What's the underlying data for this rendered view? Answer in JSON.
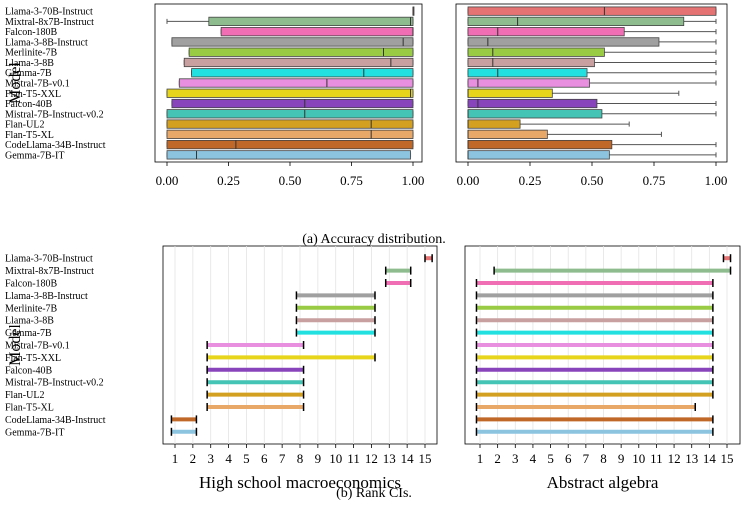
{
  "models": [
    "Llama-3-70B-Instruct",
    "Mixtral-8x7B-Instruct",
    "Falcon-180B",
    "Llama-3-8B-Instruct",
    "Merlinite-7B",
    "Llama-3-8B",
    "Gemma-7B",
    "Mistral-7B-v0.1",
    "Flan-T5-XXL",
    "Falcon-40B",
    "Mistral-7B-Instruct-v0.2",
    "Flan-UL2",
    "Flan-T5-XL",
    "CodeLlama-34B-Instruct",
    "Gemma-7B-IT"
  ],
  "colors": [
    "#e57373",
    "#8fbc8f",
    "#f06fb4",
    "#a0a0a0",
    "#99cc44",
    "#c9a0a0",
    "#22e0e0",
    "#e88fe0",
    "#e6d51a",
    "#8844bb",
    "#44c4b4",
    "#d4a020",
    "#e8a868",
    "#c06828",
    "#8cc4e0"
  ],
  "ylabel": "Model",
  "captions": {
    "a": "(a) Accuracy distribution.",
    "b": "(b) Rank CIs."
  },
  "chart_data": [
    {
      "type": "box",
      "panel": "accuracy-left",
      "ylabel": "Model",
      "xlim": [
        0,
        1
      ],
      "xticks": [
        "0.00",
        "0.25",
        "0.50",
        "0.75",
        "1.00"
      ],
      "boxes": [
        {
          "wlo": 1.0,
          "q1": 1.0,
          "med": 1.0,
          "q3": 1.0,
          "whi": 1.0
        },
        {
          "wlo": 0.0,
          "q1": 0.17,
          "med": 0.99,
          "q3": 1.0,
          "whi": 1.0
        },
        {
          "wlo": 0.22,
          "q1": 0.22,
          "med": 1.0,
          "q3": 1.0,
          "whi": 1.0
        },
        {
          "wlo": 0.02,
          "q1": 0.02,
          "med": 0.96,
          "q3": 1.0,
          "whi": 1.0
        },
        {
          "wlo": 0.09,
          "q1": 0.09,
          "med": 0.88,
          "q3": 1.0,
          "whi": 1.0
        },
        {
          "wlo": 0.07,
          "q1": 0.07,
          "med": 0.91,
          "q3": 1.0,
          "whi": 1.0
        },
        {
          "wlo": 0.1,
          "q1": 0.1,
          "med": 0.8,
          "q3": 1.0,
          "whi": 1.0
        },
        {
          "wlo": 0.05,
          "q1": 0.05,
          "med": 0.65,
          "q3": 1.0,
          "whi": 1.0
        },
        {
          "wlo": 0.0,
          "q1": 0.0,
          "med": 0.99,
          "q3": 1.0,
          "whi": 1.0
        },
        {
          "wlo": 0.02,
          "q1": 0.02,
          "med": 0.56,
          "q3": 1.0,
          "whi": 1.0
        },
        {
          "wlo": 0.0,
          "q1": 0.0,
          "med": 0.56,
          "q3": 1.0,
          "whi": 1.0
        },
        {
          "wlo": 0.0,
          "q1": 0.0,
          "med": 0.83,
          "q3": 1.0,
          "whi": 1.0
        },
        {
          "wlo": 0.0,
          "q1": 0.0,
          "med": 0.83,
          "q3": 1.0,
          "whi": 1.0
        },
        {
          "wlo": 0.0,
          "q1": 0.0,
          "med": 0.28,
          "q3": 1.0,
          "whi": 1.0
        },
        {
          "wlo": 0.0,
          "q1": 0.0,
          "med": 0.12,
          "q3": 0.99,
          "whi": 0.99
        }
      ]
    },
    {
      "type": "box",
      "panel": "accuracy-right",
      "xlim": [
        0,
        1
      ],
      "xticks": [
        "0.00",
        "0.25",
        "0.50",
        "0.75",
        "1.00"
      ],
      "boxes": [
        {
          "wlo": 0.0,
          "q1": 0.0,
          "med": 0.55,
          "q3": 1.0,
          "whi": 1.0
        },
        {
          "wlo": 0.0,
          "q1": 0.0,
          "med": 0.2,
          "q3": 0.87,
          "whi": 1.0
        },
        {
          "wlo": 0.0,
          "q1": 0.0,
          "med": 0.12,
          "q3": 0.63,
          "whi": 1.0
        },
        {
          "wlo": 0.0,
          "q1": 0.0,
          "med": 0.08,
          "q3": 0.77,
          "whi": 1.0
        },
        {
          "wlo": 0.0,
          "q1": 0.0,
          "med": 0.1,
          "q3": 0.55,
          "whi": 1.0
        },
        {
          "wlo": 0.0,
          "q1": 0.0,
          "med": 0.1,
          "q3": 0.51,
          "whi": 1.0
        },
        {
          "wlo": 0.0,
          "q1": 0.0,
          "med": 0.12,
          "q3": 0.48,
          "whi": 1.0
        },
        {
          "wlo": 0.0,
          "q1": 0.0,
          "med": 0.04,
          "q3": 0.49,
          "whi": 1.0
        },
        {
          "wlo": 0.0,
          "q1": 0.0,
          "med": 0.0,
          "q3": 0.34,
          "whi": 0.85
        },
        {
          "wlo": 0.0,
          "q1": 0.0,
          "med": 0.04,
          "q3": 0.52,
          "whi": 1.0
        },
        {
          "wlo": 0.0,
          "q1": 0.0,
          "med": 0.0,
          "q3": 0.54,
          "whi": 1.0
        },
        {
          "wlo": 0.0,
          "q1": 0.0,
          "med": 0.0,
          "q3": 0.21,
          "whi": 0.65
        },
        {
          "wlo": 0.0,
          "q1": 0.0,
          "med": 0.0,
          "q3": 0.32,
          "whi": 0.78
        },
        {
          "wlo": 0.0,
          "q1": 0.0,
          "med": 0.0,
          "q3": 0.58,
          "whi": 1.0
        },
        {
          "wlo": 0.0,
          "q1": 0.0,
          "med": 0.0,
          "q3": 0.57,
          "whi": 1.0
        }
      ]
    },
    {
      "type": "interval",
      "panel": "rank-left",
      "xlabel": "High school macroeconomics",
      "ylabel": "Model",
      "xticks": [
        1,
        2,
        3,
        4,
        5,
        6,
        7,
        8,
        9,
        10,
        11,
        12,
        13,
        14,
        15
      ],
      "intervals": [
        [
          15,
          15.4
        ],
        [
          12.8,
          14.2
        ],
        [
          12.8,
          14.2
        ],
        [
          7.8,
          12.2
        ],
        [
          7.8,
          12.2
        ],
        [
          7.8,
          12.2
        ],
        [
          7.8,
          12.2
        ],
        [
          2.8,
          8.2
        ],
        [
          2.8,
          12.2
        ],
        [
          2.8,
          8.2
        ],
        [
          2.8,
          8.2
        ],
        [
          2.8,
          8.2
        ],
        [
          2.8,
          8.2
        ],
        [
          0.8,
          2.2
        ],
        [
          0.8,
          2.2
        ]
      ]
    },
    {
      "type": "interval",
      "panel": "rank-right",
      "xlabel": "Abstract algebra",
      "xticks": [
        1,
        2,
        3,
        4,
        5,
        6,
        7,
        8,
        9,
        10,
        11,
        12,
        13,
        14,
        15
      ],
      "intervals": [
        [
          14.8,
          15.2
        ],
        [
          1.8,
          15.2
        ],
        [
          0.8,
          14.2
        ],
        [
          0.8,
          14.2
        ],
        [
          0.8,
          14.2
        ],
        [
          0.8,
          14.2
        ],
        [
          0.8,
          14.2
        ],
        [
          0.8,
          14.2
        ],
        [
          0.8,
          14.2
        ],
        [
          0.8,
          14.2
        ],
        [
          0.8,
          14.2
        ],
        [
          0.8,
          14.2
        ],
        [
          0.8,
          13.2
        ],
        [
          0.8,
          14.2
        ],
        [
          0.8,
          14.2
        ]
      ]
    }
  ]
}
